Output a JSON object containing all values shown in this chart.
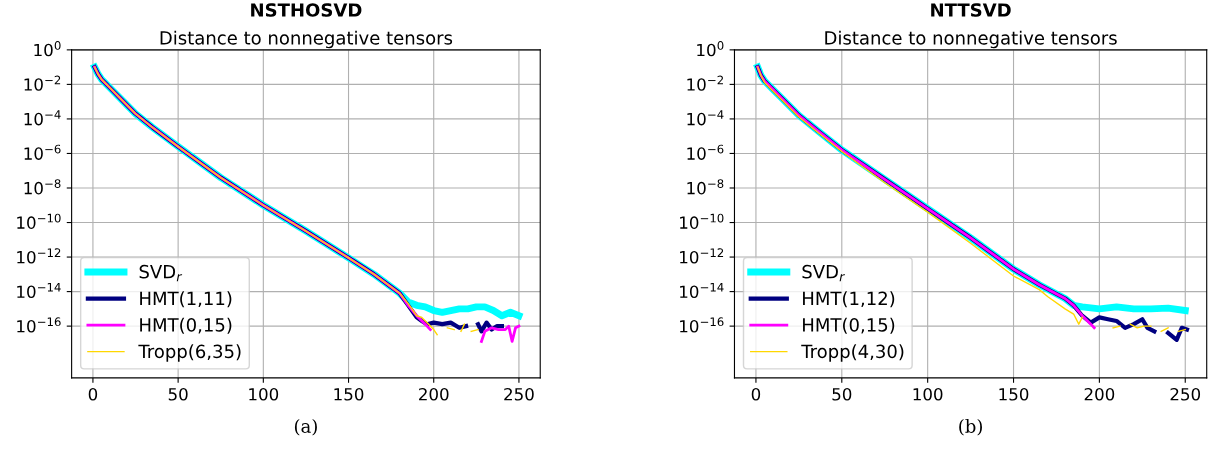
{
  "chart_data": [
    {
      "type": "line",
      "title": "NSTHOSVD",
      "subtitle": "Distance to nonnegative tensors",
      "annotations": [
        "(a)"
      ],
      "log": "y",
      "grid": true,
      "legend": "bottom left",
      "xlim": [
        -12.5,
        262.5
      ],
      "xticks": [
        0,
        50,
        100,
        150,
        200,
        250
      ],
      "ylim": [
        1e-19,
        1
      ],
      "yticks": [
        {
          "value": 1,
          "label": "10$^{0}$"
        },
        {
          "value": 0.01,
          "label": "10$^{−2}$"
        },
        {
          "value": 0.0001,
          "label": "10$^{−4}$"
        },
        {
          "value": 1e-06,
          "label": "10$^{−6}$"
        },
        {
          "value": 1e-08,
          "label": "10$^{−8}$"
        },
        {
          "value": 1e-10,
          "label": "10$^{−10}$"
        },
        {
          "value": 1e-12,
          "label": "10$^{−12}$"
        },
        {
          "value": 1e-14,
          "label": "10$^{−14}$"
        },
        {
          "value": 1e-16,
          "label": "10$^{−16}$"
        }
      ],
      "series": [
        {
          "name": "SVD$_{r}$",
          "color": "#00ffff",
          "x": [
            1,
            3,
            5,
            10,
            15,
            25,
            35,
            50,
            75,
            100,
            125,
            150,
            165,
            180,
            185,
            190,
            195,
            200,
            205,
            210,
            215,
            220,
            225,
            230,
            235,
            240,
            245,
            250
          ],
          "values": [
            0.1,
            0.04,
            0.02,
            0.0063,
            0.002,
            0.0002,
            3.2e-05,
            2.5e-06,
            4e-08,
            1e-09,
            3.2e-11,
            9e-13,
            1e-13,
            8e-15,
            2.5e-15,
            1.6e-15,
            1.3e-15,
            8e-16,
            6.3e-16,
            8e-16,
            1e-15,
            1e-15,
            1.3e-15,
            1.3e-15,
            8e-16,
            4e-16,
            6.3e-16,
            4e-16
          ]
        },
        {
          "name": "HMT(1,11)",
          "color": "#000080",
          "x": [
            1,
            3,
            5,
            10,
            15,
            25,
            35,
            50,
            75,
            100,
            125,
            150,
            165,
            180,
            185,
            190,
            193,
            196,
            200,
            205,
            210,
            215,
            219,
            221,
            226,
            228,
            231,
            234,
            237,
            240
          ],
          "values": [
            0.1,
            0.04,
            0.02,
            0.0063,
            0.002,
            0.0002,
            3.2e-05,
            2.5e-06,
            4e-08,
            1e-09,
            3.2e-11,
            9e-13,
            1e-13,
            8e-15,
            1.6e-15,
            3.2e-16,
            2e-16,
            1.3e-16,
            1.6e-16,
            1.3e-16,
            1.6e-16,
            8e-17,
            1e-16,
            null,
            1.3e-16,
            5e-17,
            1.6e-16,
            6.3e-17,
            1e-16,
            1e-16
          ]
        },
        {
          "name": "HMT(0,15)",
          "color": "#ff00ff",
          "x": [
            1,
            3,
            5,
            10,
            15,
            25,
            35,
            50,
            75,
            100,
            125,
            150,
            165,
            180,
            185,
            190,
            195,
            198,
            200,
            228,
            230,
            234,
            238,
            242,
            244,
            246,
            248,
            250
          ],
          "values": [
            0.1,
            0.04,
            0.02,
            0.0063,
            0.002,
            0.0002,
            3.2e-05,
            2.5e-06,
            4e-08,
            1e-09,
            3.2e-11,
            9e-13,
            1e-13,
            8e-15,
            1.6e-15,
            4e-16,
            1.3e-16,
            6.3e-17,
            null,
            1.3e-17,
            5e-17,
            8e-17,
            6.3e-17,
            6.3e-17,
            1e-16,
            1.3e-17,
            8e-17,
            1e-16
          ]
        },
        {
          "name": "Tropp(6,35)",
          "color": "#ffd700",
          "x": [
            1,
            3,
            5,
            10,
            15,
            25,
            35,
            50,
            75,
            100,
            125,
            150,
            165,
            180,
            185,
            190,
            193,
            197,
            200,
            202,
            203,
            208,
            212,
            214,
            216,
            218,
            220,
            222,
            226
          ],
          "values": [
            0.1,
            0.04,
            0.02,
            0.0063,
            0.002,
            0.0002,
            3.2e-05,
            2.5e-06,
            4e-08,
            1e-09,
            3.2e-11,
            9e-13,
            1e-13,
            8e-15,
            2e-15,
            4e-16,
            3.2e-16,
            1.3e-16,
            6.3e-17,
            3.2e-17,
            null,
            8e-17,
            6.3e-17,
            null,
            5e-17,
            1.3e-16,
            null,
            5e-17,
            6.3e-17
          ]
        }
      ]
    },
    {
      "type": "line",
      "title": "NTTSVD",
      "subtitle": "Distance to nonnegative tensors",
      "annotations": [
        "(b)"
      ],
      "log": "y",
      "grid": true,
      "legend": "bottom left",
      "xlim": [
        -12.5,
        262.5
      ],
      "xticks": [
        0,
        50,
        100,
        150,
        200,
        250
      ],
      "ylim": [
        1e-19,
        1
      ],
      "yticks": [
        {
          "value": 1,
          "label": "10$^{0}$"
        },
        {
          "value": 0.01,
          "label": "10$^{−2}$"
        },
        {
          "value": 0.0001,
          "label": "10$^{−4}$"
        },
        {
          "value": 1e-06,
          "label": "10$^{−6}$"
        },
        {
          "value": 1e-08,
          "label": "10$^{−8}$"
        },
        {
          "value": 1e-10,
          "label": "10$^{−10}$"
        },
        {
          "value": 1e-12,
          "label": "10$^{−12}$"
        },
        {
          "value": 1e-14,
          "label": "10$^{−14}$"
        },
        {
          "value": 1e-16,
          "label": "10$^{−16}$"
        }
      ],
      "series": [
        {
          "name": "SVD$_{r}$",
          "color": "#00ffff",
          "x": [
            1,
            3,
            5,
            10,
            15,
            25,
            35,
            50,
            75,
            100,
            125,
            150,
            165,
            180,
            185,
            190,
            200,
            210,
            220,
            230,
            240,
            250
          ],
          "values": [
            0.1,
            0.032,
            0.016,
            0.005,
            0.0016,
            0.00016,
            2.5e-05,
            1.6e-06,
            3.2e-08,
            6.3e-10,
            1.3e-11,
            2e-13,
            2.5e-14,
            4e-15,
            1.6e-15,
            1.3e-15,
            1e-15,
            1.3e-15,
            1e-15,
            1e-15,
            1.1e-15,
            8e-16
          ]
        },
        {
          "name": "HMT(1,12)",
          "color": "#000080",
          "x": [
            1,
            3,
            5,
            10,
            15,
            25,
            35,
            50,
            75,
            100,
            125,
            150,
            165,
            180,
            185,
            190,
            195,
            200,
            205,
            210,
            215,
            220,
            225,
            228,
            232,
            234,
            240,
            245,
            248,
            251
          ],
          "values": [
            0.1,
            0.032,
            0.016,
            0.005,
            0.0016,
            0.00016,
            2.5e-05,
            1.6e-06,
            3.2e-08,
            6.3e-10,
            1.3e-11,
            2e-13,
            2.5e-14,
            4e-15,
            1.6e-15,
            4e-16,
            1.6e-16,
            3.2e-16,
            2.5e-16,
            2e-16,
            8e-17,
            1.3e-16,
            2.5e-16,
            8e-17,
            5e-17,
            null,
            4e-17,
            1.6e-17,
            8e-17,
            6.3e-17
          ]
        },
        {
          "name": "HMT(0,15)",
          "color": "#ff00ff",
          "x": [
            1,
            3,
            5,
            10,
            15,
            25,
            35,
            50,
            75,
            100,
            125,
            150,
            165,
            180,
            185,
            190,
            195,
            197
          ],
          "values": [
            0.1,
            0.032,
            0.016,
            0.005,
            0.0016,
            0.00016,
            2.5e-05,
            1.6e-06,
            3.2e-08,
            6.3e-10,
            1.3e-11,
            2e-13,
            2.5e-14,
            4e-15,
            1.6e-15,
            4e-16,
            1.3e-16,
            8e-17
          ]
        },
        {
          "name": "Tropp(4,30)",
          "color": "#ffd700",
          "x": [
            1,
            3,
            5,
            10,
            15,
            25,
            35,
            50,
            75,
            100,
            125,
            150,
            165,
            170,
            180,
            185,
            188,
            190,
            192,
            208,
            212,
            215,
            218,
            222,
            226,
            230,
            232,
            236,
            240,
            242,
            246,
            250
          ],
          "values": [
            0.1,
            0.032,
            0.013,
            0.004,
            0.0013,
            0.00013,
            2e-05,
            1.3e-06,
            2e-08,
            4e-10,
            6.3e-12,
            8e-14,
            1.3e-14,
            5e-15,
            1e-15,
            5e-16,
            1.3e-16,
            3.2e-16,
            null,
            8e-17,
            1e-16,
            null,
            1.3e-16,
            8e-17,
            1e-16,
            1e-16,
            null,
            5e-17,
            8e-17,
            null,
            5e-17,
            6.3e-17
          ]
        }
      ]
    }
  ]
}
